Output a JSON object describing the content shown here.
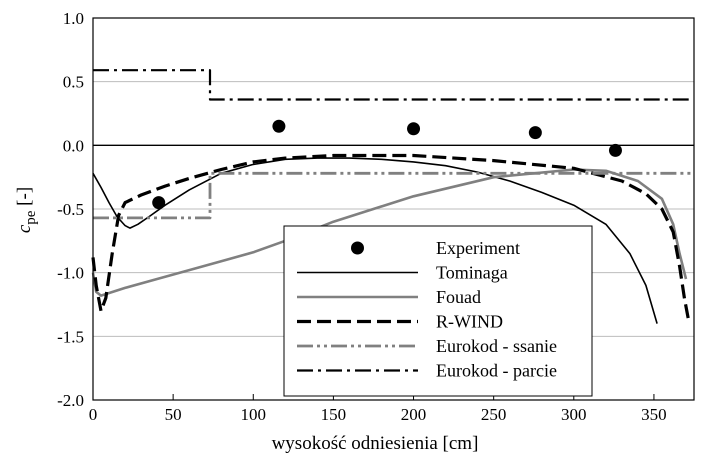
{
  "chart_data": {
    "type": "line",
    "title": "",
    "xlabel": "wysokość odniesienia [cm]",
    "ylabel_main": "c",
    "ylabel_sub": "pe",
    "ylabel_unit": " [-]",
    "xlim": [
      0,
      375
    ],
    "ylim": [
      -2.0,
      1.0
    ],
    "xticks": [
      0,
      50,
      100,
      150,
      200,
      250,
      300,
      350
    ],
    "yticks": [
      1.0,
      0.5,
      0.0,
      -0.5,
      -1.0,
      -1.5,
      -2.0
    ],
    "ytick_labels": [
      "1.0",
      "0.5",
      "0.0",
      "-0.5",
      "-1.0",
      "-1.5",
      "-2.0"
    ],
    "grid": "horizontal",
    "legend_position": "bottom-center",
    "series": [
      {
        "name": "Experiment",
        "kind": "markers",
        "color": "#000000",
        "x": [
          41,
          116,
          200,
          276,
          326
        ],
        "y": [
          -0.45,
          0.15,
          0.13,
          0.1,
          -0.04
        ]
      },
      {
        "name": "Tominaga",
        "kind": "line",
        "color": "#000000",
        "dash": "solid",
        "x": [
          0,
          5,
          10,
          15,
          20,
          23,
          28,
          35,
          45,
          60,
          80,
          100,
          120,
          140,
          160,
          180,
          200,
          220,
          240,
          260,
          280,
          300,
          320,
          335,
          345,
          352
        ],
        "y": [
          -0.22,
          -0.33,
          -0.45,
          -0.56,
          -0.63,
          -0.65,
          -0.62,
          -0.56,
          -0.47,
          -0.35,
          -0.22,
          -0.15,
          -0.11,
          -0.1,
          -0.1,
          -0.11,
          -0.13,
          -0.16,
          -0.21,
          -0.28,
          -0.37,
          -0.47,
          -0.62,
          -0.85,
          -1.1,
          -1.4
        ]
      },
      {
        "name": "Fouad",
        "kind": "line",
        "color": "#808080",
        "dash": "solid",
        "x": [
          0,
          2,
          5,
          20,
          40,
          60,
          80,
          100,
          120,
          150,
          200,
          250,
          300,
          320,
          340,
          355,
          362,
          366,
          370
        ],
        "y": [
          -1.0,
          -1.15,
          -1.18,
          -1.12,
          -1.05,
          -0.98,
          -0.91,
          -0.84,
          -0.75,
          -0.6,
          -0.4,
          -0.25,
          -0.19,
          -0.2,
          -0.28,
          -0.42,
          -0.62,
          -0.85,
          -1.05
        ]
      },
      {
        "name": "R-WIND",
        "kind": "line",
        "color": "#000000",
        "dash": "dashed",
        "x": [
          0,
          2,
          5,
          8,
          12,
          16,
          20,
          30,
          45,
          60,
          80,
          100,
          120,
          150,
          200,
          250,
          300,
          330,
          345,
          355,
          362,
          366,
          369,
          372
        ],
        "y": [
          -0.88,
          -1.1,
          -1.3,
          -1.2,
          -0.85,
          -0.55,
          -0.45,
          -0.39,
          -0.32,
          -0.26,
          -0.19,
          -0.13,
          -0.1,
          -0.08,
          -0.08,
          -0.12,
          -0.18,
          -0.28,
          -0.38,
          -0.5,
          -0.68,
          -0.95,
          -1.2,
          -1.4
        ]
      },
      {
        "name": "Eurokod - ssanie",
        "kind": "step",
        "color": "#808080",
        "dash": "dashdotdot",
        "x": [
          0,
          73,
          73,
          375
        ],
        "y": [
          -0.57,
          -0.57,
          -0.22,
          -0.22
        ]
      },
      {
        "name": "Eurokod - parcie",
        "kind": "step",
        "color": "#000000",
        "dash": "dashdot",
        "x": [
          0,
          73,
          73,
          375
        ],
        "y": [
          0.59,
          0.59,
          0.36,
          0.36
        ]
      }
    ]
  }
}
